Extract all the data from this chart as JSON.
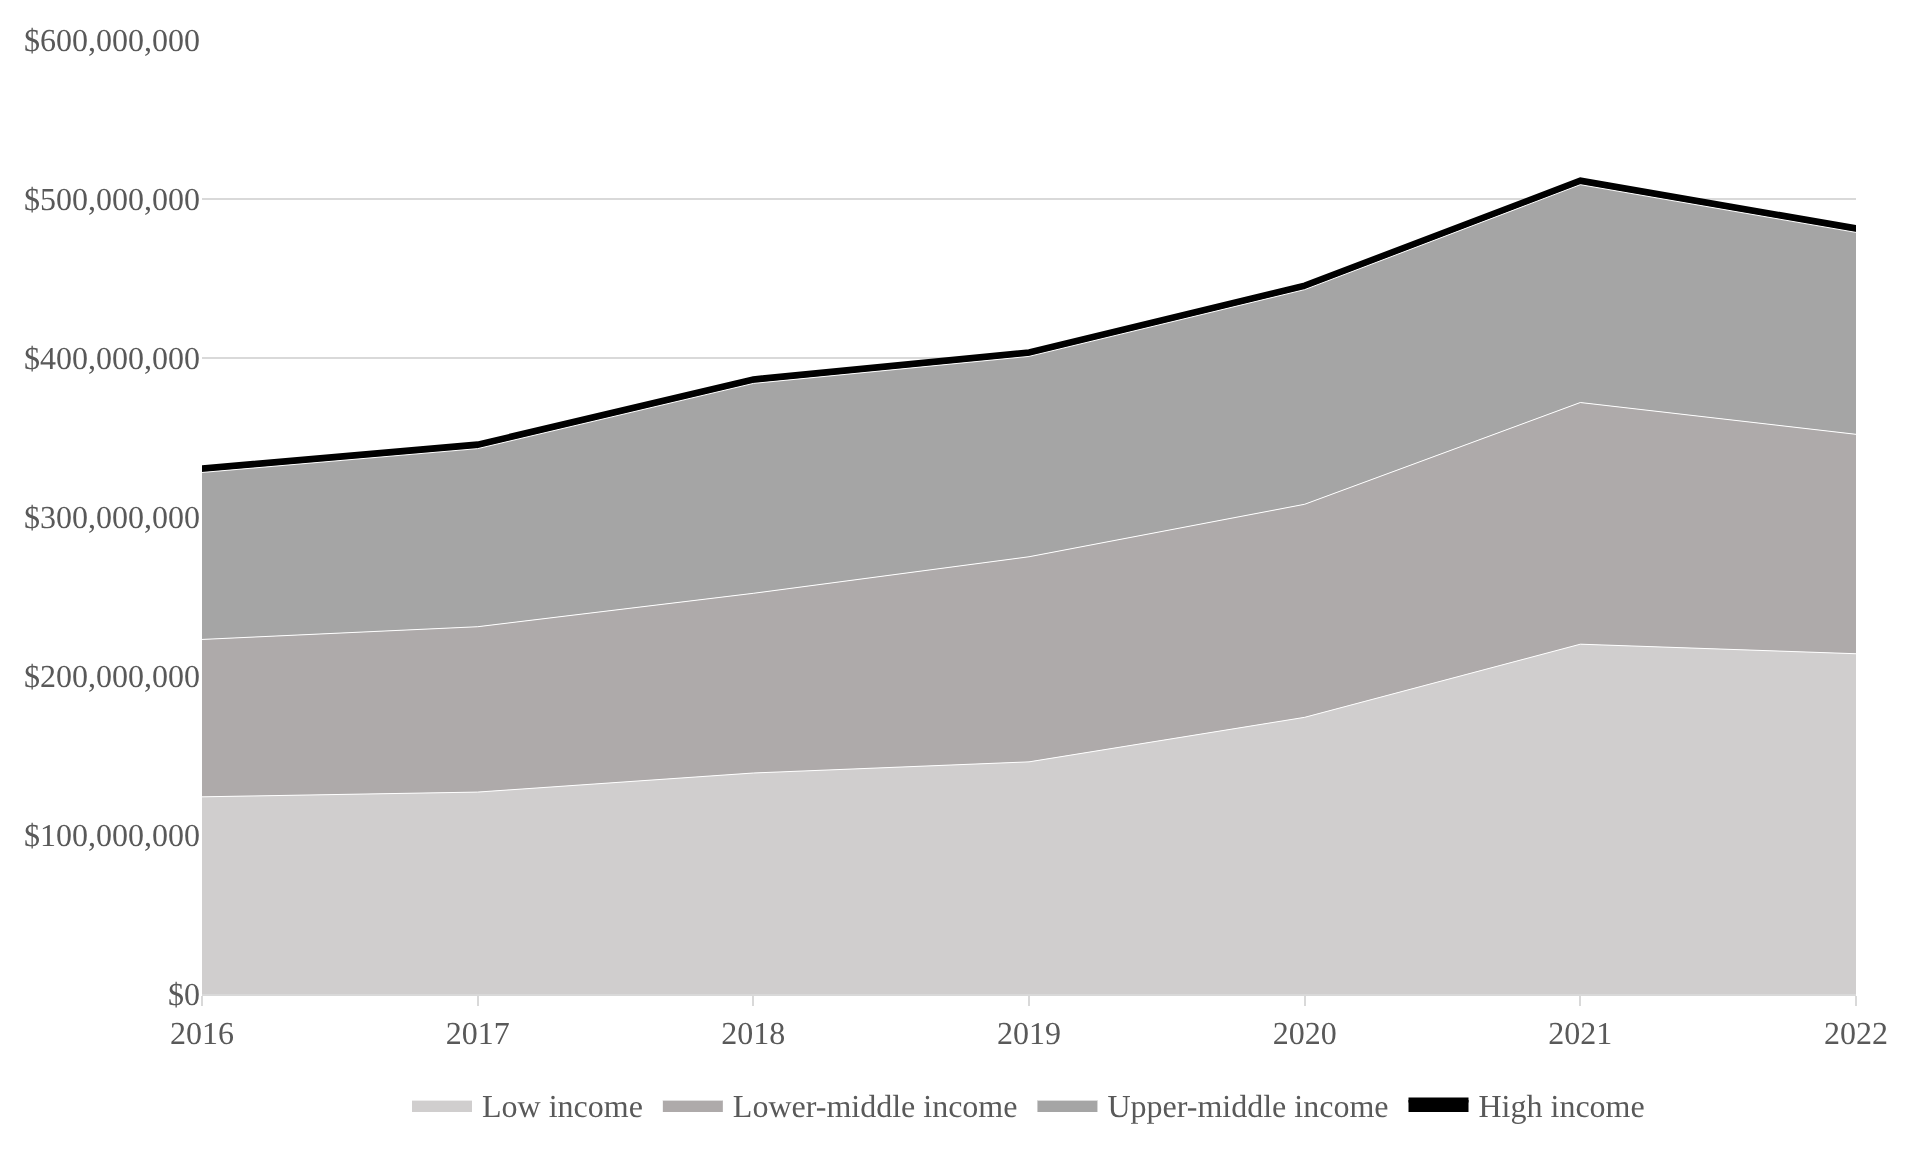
{
  "chart_data": {
    "type": "area",
    "stacked": true,
    "x": [
      2016,
      2017,
      2018,
      2019,
      2020,
      2021,
      2022
    ],
    "series": [
      {
        "name": "Low income",
        "color": "#d0cece",
        "values": [
          124000000,
          127000000,
          139000000,
          146000000,
          174000000,
          220000000,
          214000000
        ]
      },
      {
        "name": "Lower-middle income",
        "color": "#aeaaaa",
        "values": [
          99000000,
          104000000,
          113000000,
          129000000,
          134000000,
          152000000,
          138000000
        ]
      },
      {
        "name": "Upper-middle income",
        "color": "#a5a5a5",
        "values": [
          105000000,
          112000000,
          132000000,
          126000000,
          135000000,
          137000000,
          127000000
        ]
      },
      {
        "name": "High income",
        "color": "#000000",
        "values": [
          3000000,
          3000000,
          3000000,
          3000000,
          3000000,
          3000000,
          3000000
        ]
      }
    ],
    "xlim": [
      2016,
      2022
    ],
    "xticks": [
      2016,
      2017,
      2018,
      2019,
      2020,
      2021,
      2022
    ],
    "ylim": [
      0,
      600000000
    ],
    "yticks": [
      {
        "value": 0,
        "label": "$0"
      },
      {
        "value": 100000000,
        "label": "$100,000,000"
      },
      {
        "value": 200000000,
        "label": "$200,000,000"
      },
      {
        "value": 300000000,
        "label": "$300,000,000"
      },
      {
        "value": 400000000,
        "label": "$400,000,000"
      },
      {
        "value": 500000000,
        "label": "$500,000,000"
      },
      {
        "value": 600000000,
        "label": "$600,000,000"
      }
    ],
    "grid": "y",
    "legend": "bottom"
  }
}
